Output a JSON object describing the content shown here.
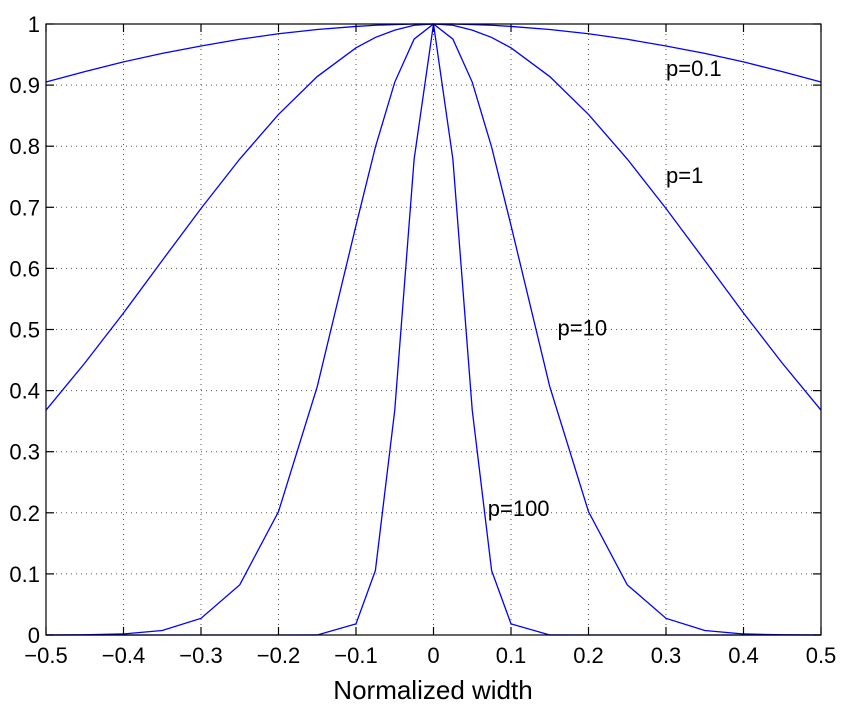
{
  "chart_data": {
    "type": "line",
    "title": "",
    "xlabel": "Normalized width",
    "ylabel": "",
    "xlim": [
      -0.5,
      0.5
    ],
    "ylim": [
      0,
      1
    ],
    "xticks": [
      -0.5,
      -0.4,
      -0.3,
      -0.2,
      -0.1,
      0,
      0.1,
      0.2,
      0.3,
      0.4,
      0.5
    ],
    "xtick_labels": [
      "−0.5",
      "−0.4",
      "−0.3",
      "−0.2",
      "−0.1",
      "0",
      "0.1",
      "0.2",
      "0.3",
      "0.4",
      "0.5"
    ],
    "yticks": [
      0,
      0.1,
      0.2,
      0.3,
      0.4,
      0.5,
      0.6,
      0.7,
      0.8,
      0.9,
      1
    ],
    "ytick_labels": [
      "0",
      "0.1",
      "0.2",
      "0.3",
      "0.4",
      "0.5",
      "0.6",
      "0.7",
      "0.8",
      "0.9",
      "1"
    ],
    "grid": true,
    "x": [
      -0.5,
      -0.45,
      -0.4,
      -0.35,
      -0.3,
      -0.25,
      -0.2,
      -0.15,
      -0.1,
      -0.075,
      -0.05,
      -0.025,
      0,
      0.025,
      0.05,
      0.075,
      0.1,
      0.15,
      0.2,
      0.25,
      0.3,
      0.35,
      0.4,
      0.45,
      0.5
    ],
    "series": [
      {
        "name": "p=0.1",
        "color": "#0000ff",
        "values": [
          0.905,
          0.922,
          0.938,
          0.952,
          0.964,
          0.975,
          0.984,
          0.991,
          0.996,
          0.998,
          0.999,
          1.0,
          1.0,
          1.0,
          0.999,
          0.998,
          0.996,
          0.991,
          0.984,
          0.975,
          0.964,
          0.952,
          0.938,
          0.922,
          0.905
        ]
      },
      {
        "name": "p=1",
        "color": "#0000ff",
        "values": [
          0.368,
          0.445,
          0.527,
          0.613,
          0.698,
          0.779,
          0.852,
          0.914,
          0.961,
          0.978,
          0.99,
          0.998,
          1.0,
          0.998,
          0.99,
          0.978,
          0.961,
          0.914,
          0.852,
          0.779,
          0.698,
          0.613,
          0.527,
          0.445,
          0.368
        ]
      },
      {
        "name": "p=10",
        "color": "#0000ff",
        "values": [
          0.0,
          0.0003,
          0.0017,
          0.0074,
          0.0273,
          0.0821,
          0.2019,
          0.4066,
          0.6703,
          0.7985,
          0.9048,
          0.9753,
          1.0,
          0.9753,
          0.9048,
          0.7985,
          0.6703,
          0.4066,
          0.2019,
          0.0821,
          0.0273,
          0.0074,
          0.0017,
          0.0003,
          0.0
        ]
      },
      {
        "name": "p=100",
        "color": "#0000ff",
        "values": [
          0.0,
          0.0,
          0.0,
          0.0,
          0.0,
          0.0,
          0.0,
          0.0001,
          0.0183,
          0.1054,
          0.3679,
          0.7788,
          1.0,
          0.7788,
          0.3679,
          0.1054,
          0.0183,
          0.0001,
          0.0,
          0.0,
          0.0,
          0.0,
          0.0,
          0.0,
          0.0
        ]
      }
    ],
    "annotations": [
      {
        "text": "p=0.1",
        "x": 0.3,
        "y": 0.915
      },
      {
        "text": "p=1",
        "x": 0.3,
        "y": 0.74
      },
      {
        "text": "p=10",
        "x": 0.16,
        "y": 0.49
      },
      {
        "text": "p=100",
        "x": 0.07,
        "y": 0.195
      }
    ]
  }
}
